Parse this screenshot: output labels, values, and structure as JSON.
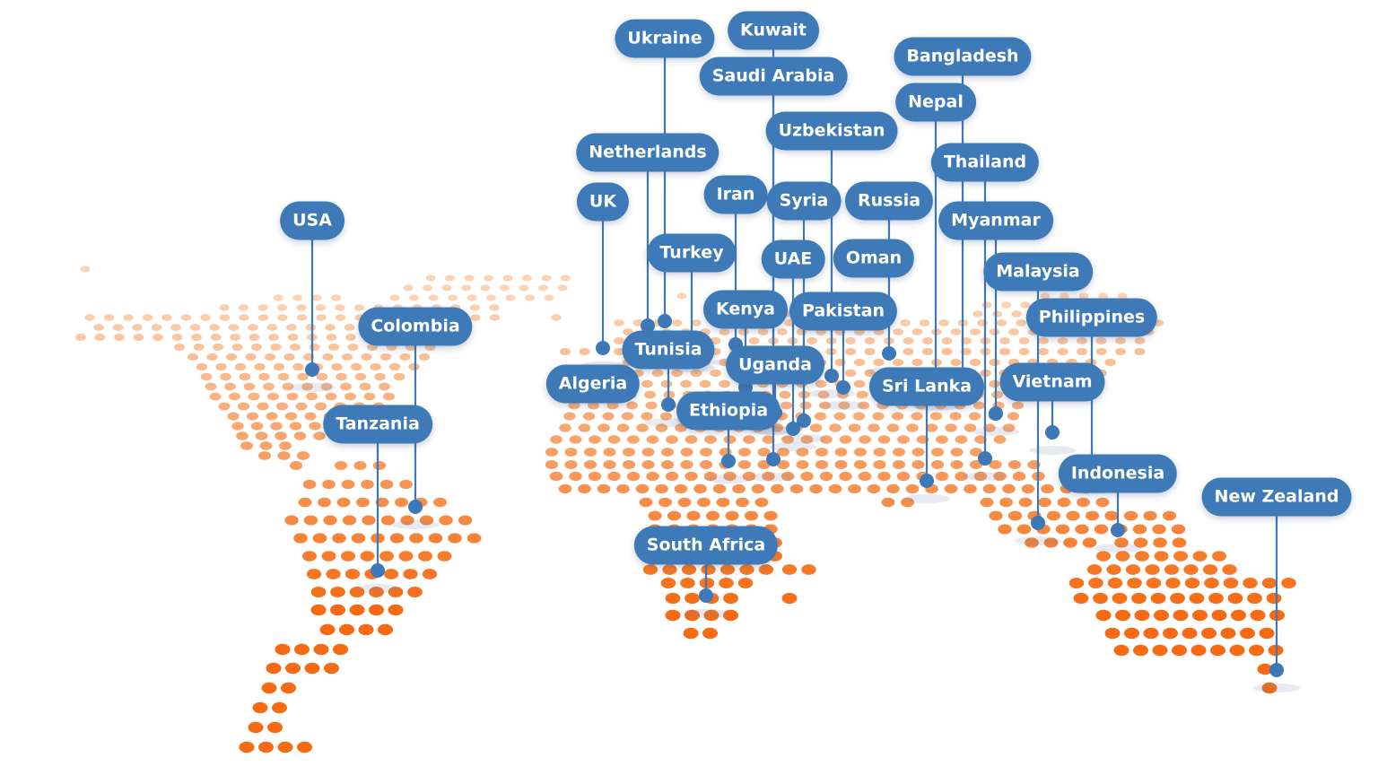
{
  "colors": {
    "pill": "#3f7ab8",
    "line": "#3d78b8",
    "dots_light": "#fbd4b6",
    "dots_dark": "#f56a12"
  },
  "markers": [
    {
      "id": "usa",
      "label": "USA"
    },
    {
      "id": "colombia",
      "label": "Colombia"
    },
    {
      "id": "tanzania",
      "label": "Tanzania"
    },
    {
      "id": "uk",
      "label": "UK"
    },
    {
      "id": "algeria",
      "label": "Algeria"
    },
    {
      "id": "netherlands",
      "label": "Netherlands"
    },
    {
      "id": "ukraine",
      "label": "Ukraine"
    },
    {
      "id": "turkey",
      "label": "Turkey"
    },
    {
      "id": "tunisia",
      "label": "Tunisia"
    },
    {
      "id": "kuwait",
      "label": "Kuwait"
    },
    {
      "id": "saudi-arabia",
      "label": "Saudi Arabia"
    },
    {
      "id": "iran",
      "label": "Iran"
    },
    {
      "id": "kenya",
      "label": "Kenya"
    },
    {
      "id": "uganda",
      "label": "Uganda"
    },
    {
      "id": "ethiopia",
      "label": "Ethiopia"
    },
    {
      "id": "south-africa",
      "label": "South Africa"
    },
    {
      "id": "syria",
      "label": "Syria"
    },
    {
      "id": "uae",
      "label": "UAE"
    },
    {
      "id": "uzbekistan",
      "label": "Uzbekistan"
    },
    {
      "id": "pakistan",
      "label": "Pakistan"
    },
    {
      "id": "russia",
      "label": "Russia"
    },
    {
      "id": "oman",
      "label": "Oman"
    },
    {
      "id": "sri-lanka",
      "label": "Sri Lanka"
    },
    {
      "id": "bangladesh",
      "label": "Bangladesh"
    },
    {
      "id": "nepal",
      "label": "Nepal"
    },
    {
      "id": "thailand",
      "label": "Thailand"
    },
    {
      "id": "myanmar",
      "label": "Myanmar"
    },
    {
      "id": "malaysia",
      "label": "Malaysia"
    },
    {
      "id": "philippines",
      "label": "Philippines"
    },
    {
      "id": "vietnam",
      "label": "Vietnam"
    },
    {
      "id": "indonesia",
      "label": "Indonesia"
    },
    {
      "id": "new-zealand",
      "label": "New Zealand"
    }
  ]
}
